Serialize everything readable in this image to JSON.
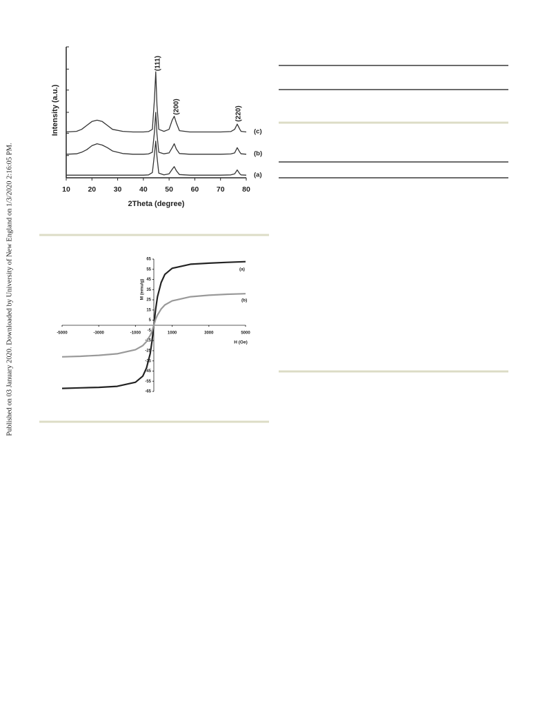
{
  "side_note": "Published on 03 January 2020. Downloaded by University of New England on 1/3/2020 2:16:05 PM.",
  "chart_data": [
    {
      "type": "line",
      "xlabel": "2Theta (degree)",
      "ylabel": "Intensity (a.u.)",
      "x": [
        10,
        14,
        16,
        18,
        20,
        22,
        24,
        26,
        28,
        32,
        36,
        40,
        42,
        43.5,
        44.3,
        44.8,
        45.3,
        46,
        48,
        50,
        51.2,
        52,
        52.8,
        54,
        58,
        62,
        66,
        70,
        74,
        75.5,
        76.5,
        77.5,
        78,
        80
      ],
      "series": [
        {
          "name": "(a)",
          "color": "#333333",
          "values": [
            2,
            2,
            2,
            2,
            2,
            2,
            2,
            2,
            2,
            2,
            2,
            2,
            2.2,
            4,
            18,
            28,
            16,
            3.5,
            2.2,
            3,
            6.5,
            8.5,
            5.5,
            2.5,
            2,
            2,
            2,
            2,
            2.2,
            3,
            6,
            3,
            2.2,
            2
          ]
        },
        {
          "name": "(b)",
          "color": "#333333",
          "values": [
            18,
            18.3,
            19.5,
            21.5,
            24.5,
            26,
            25,
            23,
            20.5,
            18.5,
            18,
            18,
            18.2,
            19.5,
            35,
            50,
            33,
            19.5,
            18.3,
            19,
            23,
            26,
            22,
            18.5,
            18,
            18,
            18,
            18,
            18.2,
            19,
            23,
            19.5,
            18.3,
            18
          ]
        },
        {
          "name": "(c)",
          "color": "#333333",
          "values": [
            35,
            35.5,
            37,
            40,
            43,
            44,
            43,
            40,
            37,
            35.5,
            35,
            35,
            35.3,
            37,
            60,
            81,
            55,
            37,
            35.5,
            37,
            44,
            47,
            42,
            36,
            35,
            35,
            35,
            35,
            35.3,
            37,
            41,
            37,
            35.5,
            35
          ]
        }
      ],
      "annotations": [
        "(111)",
        "(200)",
        "(220)"
      ],
      "xlim": [
        10,
        80
      ],
      "xticks": [
        10,
        20,
        30,
        40,
        50,
        60,
        70,
        80
      ],
      "ylim": [
        0,
        100
      ],
      "yticks": [
        0,
        17,
        34,
        50,
        67,
        83,
        100
      ]
    },
    {
      "type": "line",
      "xlabel": "H (Oe)",
      "ylabel": "M (emu/g)",
      "x": [
        -5000,
        -4000,
        -3000,
        -2000,
        -1000,
        -600,
        -400,
        -200,
        -100,
        0,
        100,
        200,
        400,
        600,
        1000,
        2000,
        3000,
        4000,
        5000
      ],
      "series": [
        {
          "name": "(a)",
          "color": "#222222",
          "values": [
            -62,
            -61.5,
            -61,
            -60,
            -56,
            -50,
            -42,
            -28,
            -16,
            0,
            16,
            28,
            42,
            50,
            56,
            60,
            61,
            61.8,
            62.5
          ]
        },
        {
          "name": "(b)",
          "color": "#999999",
          "values": [
            -31,
            -30.5,
            -29.5,
            -28,
            -24,
            -20,
            -16,
            -10,
            -6,
            0,
            6,
            10,
            16,
            20,
            24,
            28,
            29.5,
            30.5,
            31
          ]
        }
      ],
      "xlim": [
        -5000,
        5000
      ],
      "xticks": [
        -5000,
        -3000,
        -1000,
        1000,
        3000,
        5000
      ],
      "ylim": [
        -65,
        65
      ],
      "yticks": [
        65,
        55,
        45,
        35,
        25,
        15,
        5,
        -5,
        -15,
        -25,
        -35,
        -45,
        -55,
        -65
      ]
    }
  ]
}
